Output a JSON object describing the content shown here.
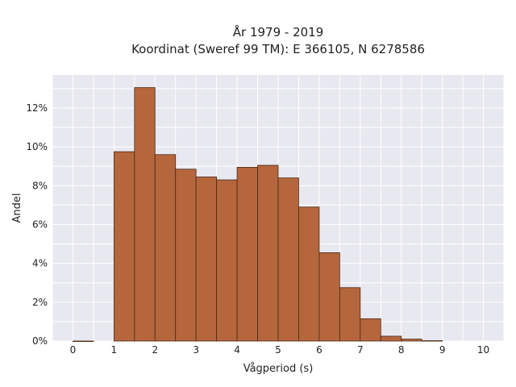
{
  "chart_data": {
    "type": "bar",
    "title_lines": [
      "År 1979 - 2019",
      "Koordinat (Sweref 99 TM): E 366105, N 6278586"
    ],
    "xlabel": "Vågperiod (s)",
    "ylabel": "Andel",
    "bin_width": 0.5,
    "bin_starts": [
      0,
      0.5,
      1,
      1.5,
      2,
      2.5,
      3,
      3.5,
      4,
      4.5,
      5,
      5.5,
      6,
      6.5,
      7,
      7.5,
      8,
      8.5,
      9,
      9.5
    ],
    "values": [
      0.0005,
      0,
      9.75,
      13.05,
      9.6,
      8.85,
      8.45,
      8.3,
      8.95,
      9.05,
      8.4,
      6.9,
      4.55,
      2.75,
      1.15,
      0.25,
      0.1,
      0.02,
      0,
      0
    ],
    "xlim": [
      -0.5,
      10.5
    ],
    "ylim": [
      0,
      13.7
    ],
    "xticks": [
      0,
      1,
      2,
      3,
      4,
      5,
      6,
      7,
      8,
      9,
      10
    ],
    "xtick_labels": [
      "0",
      "1",
      "2",
      "3",
      "4",
      "5",
      "6",
      "7",
      "8",
      "9",
      "10"
    ],
    "yticks": [
      0,
      2,
      4,
      6,
      8,
      10,
      12
    ],
    "ytick_labels": [
      "0%",
      "2%",
      "4%",
      "6%",
      "8%",
      "10%",
      "12%"
    ],
    "grid": true,
    "colors": {
      "bar_fill": "#b5663c",
      "bar_edge": "#4a2a18",
      "plot_bg": "#e8e8f0",
      "grid": "#ffffff"
    }
  }
}
